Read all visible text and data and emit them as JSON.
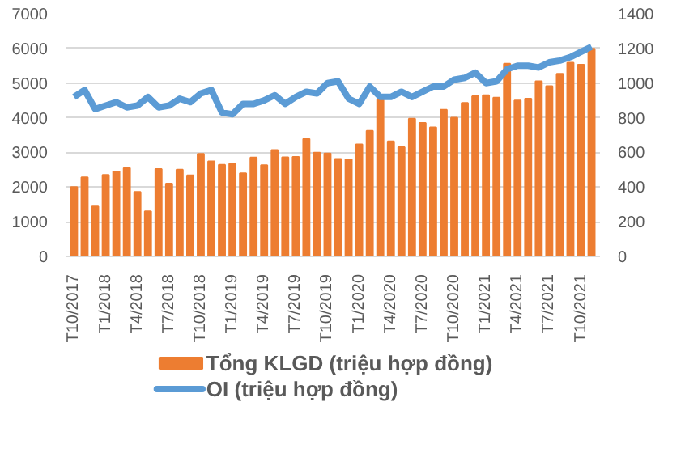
{
  "chart_data": {
    "type": "bar",
    "categories": [
      "T10/2017",
      null,
      null,
      "T1/2018",
      null,
      null,
      "T4/2018",
      null,
      null,
      "T7/2018",
      null,
      null,
      "T10/2018",
      null,
      null,
      "T1/2019",
      null,
      null,
      "T4/2019",
      null,
      null,
      "T7/2019",
      null,
      null,
      "T10/2019",
      null,
      null,
      "T1/2020",
      null,
      null,
      "T4/2020",
      null,
      null,
      "T7/2020",
      null,
      null,
      "T10/2020",
      null,
      null,
      "T1/2021",
      null,
      null,
      "T4/2021",
      null,
      null,
      "T7/2021",
      null,
      null,
      "T10/2021",
      null
    ],
    "series": [
      {
        "name": "Tổng KLGD (triệu hợp đồng)",
        "color": "#ed7d31",
        "values": [
          2000,
          2280,
          1440,
          2350,
          2450,
          2550,
          1860,
          1300,
          2520,
          2100,
          2500,
          2340,
          2960,
          2740,
          2640,
          2670,
          2400,
          2850,
          2630,
          3070,
          2860,
          2870,
          3390,
          2990,
          2970,
          2810,
          2800,
          3230,
          3620,
          4520,
          3320,
          3150,
          3970,
          3850,
          3720,
          4230,
          4000,
          4430,
          4620,
          4650,
          4580,
          5560,
          4500,
          4550,
          5050,
          4910,
          5270,
          5590,
          5530,
          5990
        ]
      },
      {
        "name": "OI (triệu hợp đồng)",
        "type": "line",
        "axis": "y2",
        "color": "#5b9bd5",
        "values": [
          920,
          960,
          850,
          870,
          890,
          860,
          870,
          920,
          860,
          870,
          910,
          890,
          940,
          960,
          830,
          820,
          880,
          880,
          900,
          930,
          880,
          920,
          950,
          940,
          1000,
          1010,
          910,
          880,
          980,
          920,
          920,
          950,
          920,
          950,
          980,
          980,
          1020,
          1030,
          1060,
          1000,
          1010,
          1080,
          1100,
          1100,
          1090,
          1120,
          1130,
          1150,
          1180,
          1210
        ]
      }
    ],
    "ylim": [
      0,
      7000
    ],
    "yticks": [
      0,
      1000,
      2000,
      3000,
      4000,
      5000,
      6000,
      7000
    ],
    "y2lim": [
      0,
      1400
    ],
    "y2ticks": [
      0,
      200,
      400,
      600,
      800,
      1000,
      1200,
      1400
    ],
    "grid": "y",
    "legend": "bottom",
    "line_style": "solid",
    "marker": "none"
  }
}
